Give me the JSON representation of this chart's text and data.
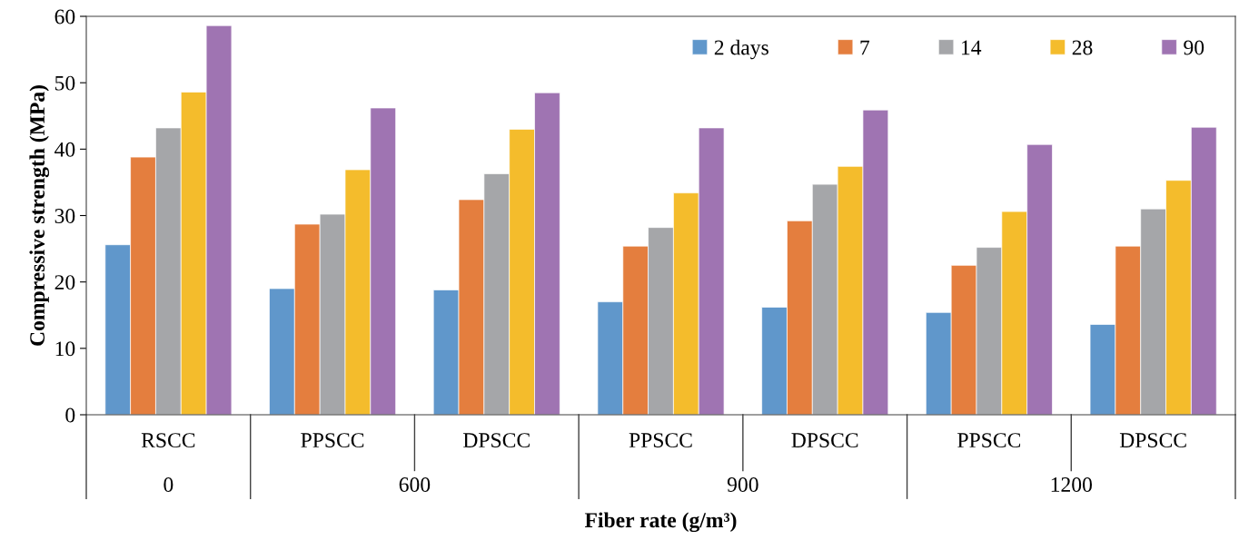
{
  "chart_data": {
    "type": "bar",
    "xlabel": "Fiber rate (g/m³)",
    "ylabel": "Compressive strength (MPa)",
    "categories": [
      "RSCC",
      "PPSCC",
      "DPSCC",
      "PPSCC",
      "DPSCC",
      "PPSCC",
      "DPSCC"
    ],
    "series": [
      {
        "name": "2 days",
        "color": "#6097cb",
        "values": [
          25.6,
          19.0,
          18.8,
          17.0,
          16.2,
          15.4,
          13.6
        ]
      },
      {
        "name": "7",
        "color": "#e47e3e",
        "values": [
          38.8,
          28.7,
          32.4,
          25.4,
          29.2,
          22.5,
          25.4
        ]
      },
      {
        "name": "14",
        "color": "#a5a6a9",
        "values": [
          43.2,
          30.2,
          36.3,
          28.2,
          34.7,
          25.2,
          31.0
        ]
      },
      {
        "name": "28",
        "color": "#f4bc2c",
        "values": [
          48.6,
          36.9,
          43.0,
          33.4,
          37.4,
          30.6,
          35.3
        ]
      },
      {
        "name": "90",
        "color": "#9f74b2",
        "values": [
          58.6,
          46.2,
          48.5,
          43.2,
          45.9,
          40.7,
          43.3
        ]
      }
    ],
    "annotations": [
      "0",
      "600",
      "900",
      "1200"
    ],
    "ylim": [
      0,
      60
    ],
    "yticks": [
      0,
      10,
      20,
      30,
      40,
      50,
      60
    ],
    "grid": false,
    "legend": "top right"
  }
}
